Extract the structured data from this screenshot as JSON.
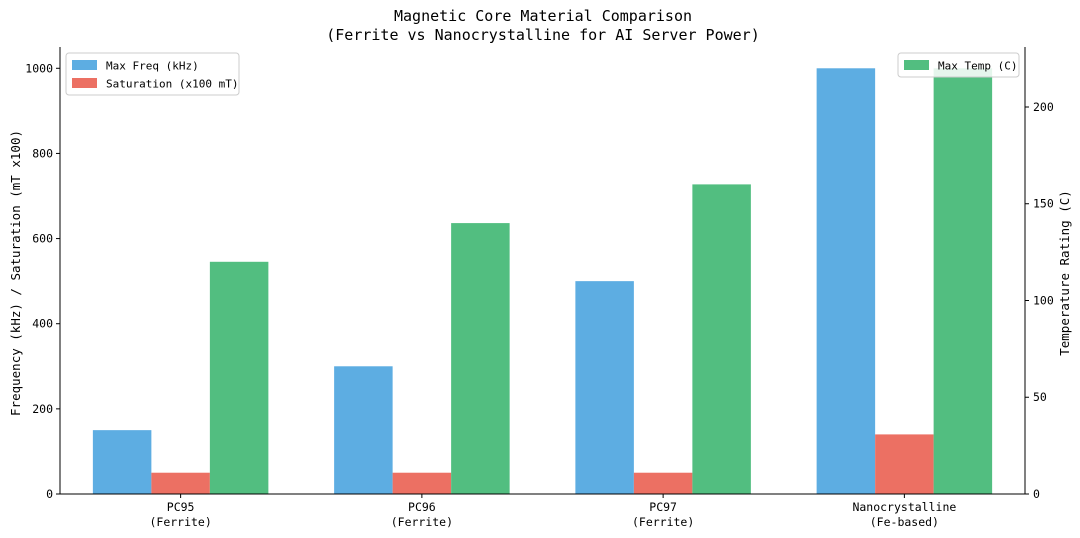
{
  "chart_data": {
    "type": "bar",
    "title": "Magnetic Core Material Comparison",
    "subtitle": "(Ferrite vs Nanocrystalline for AI Server Power)",
    "categories": [
      [
        "PC95",
        "(Ferrite)"
      ],
      [
        "PC96",
        "(Ferrite)"
      ],
      [
        "PC97",
        "(Ferrite)"
      ],
      [
        "Nanocrystalline",
        "(Fe-based)"
      ]
    ],
    "ylabel": "Frequency (kHz) / Saturation (mT x100)",
    "ylim": [
      0,
      1050
    ],
    "yticks": [
      0,
      200,
      400,
      600,
      800,
      1000
    ],
    "y2label": "Temperature Rating (C)",
    "y2lim": [
      0,
      231
    ],
    "y2ticks": [
      0,
      50,
      100,
      150,
      200
    ],
    "series": [
      {
        "name": "Max Freq (kHz)",
        "axis": "left",
        "color": "#5dade2",
        "values": [
          150,
          300,
          500,
          1000
        ]
      },
      {
        "name": "Saturation (x100 mT)",
        "axis": "left",
        "color": "#ec7063",
        "values": [
          50,
          50,
          50,
          140
        ]
      },
      {
        "name": "Max Temp (C)",
        "axis": "right",
        "color": "#52be80",
        "values": [
          120,
          140,
          160,
          220
        ]
      }
    ],
    "legend_left": "upper-left",
    "legend_right": "upper-right",
    "grid": false
  }
}
